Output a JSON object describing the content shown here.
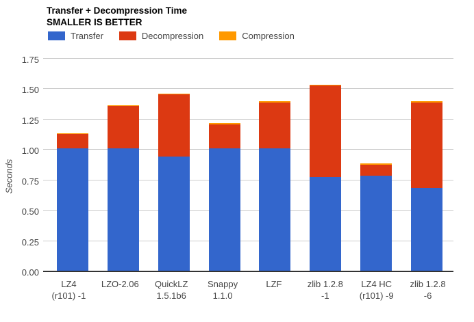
{
  "header": {
    "title": "Transfer + Decompression Time",
    "subtitle": "SMALLER IS BETTER"
  },
  "legend": {
    "items": [
      {
        "label": "Transfer",
        "color": "#3366cc"
      },
      {
        "label": "Decompression",
        "color": "#dc3912"
      },
      {
        "label": "Compression",
        "color": "#ff9900"
      }
    ]
  },
  "axes": {
    "y_title": "Seconds",
    "y_ticks": [
      "0.00",
      "0.25",
      "0.50",
      "0.75",
      "1.00",
      "1.25",
      "1.50",
      "1.75"
    ]
  },
  "chart_data": {
    "type": "bar",
    "stacked": true,
    "title": "Transfer + Decompression Time",
    "subtitle": "SMALLER IS BETTER",
    "ylabel": "Seconds",
    "xlabel": "",
    "ylim": [
      0,
      1.75
    ],
    "ytick_step": 0.25,
    "grid": true,
    "legend_position": "top",
    "categories": [
      "LZ4 (r101) -1",
      "LZO-2.06",
      "QuickLZ 1.5.1b6",
      "Snappy 1.1.0",
      "LZF",
      "zlib 1.2.8 -1",
      "LZ4 HC (r101) -9",
      "zlib 1.2.8 -6"
    ],
    "category_label_lines": [
      [
        "LZ4",
        "(r101) -1"
      ],
      [
        "LZO-2.06"
      ],
      [
        "QuickLZ",
        "1.5.1b6"
      ],
      [
        "Snappy",
        "1.1.0"
      ],
      [
        "LZF"
      ],
      [
        "zlib 1.2.8",
        "-1"
      ],
      [
        "LZ4 HC",
        "(r101) -9"
      ],
      [
        "zlib 1.2.8",
        "-6"
      ]
    ],
    "series": [
      {
        "name": "Transfer",
        "color": "#3366cc",
        "values": [
          1.01,
          1.01,
          0.94,
          1.01,
          1.01,
          0.77,
          0.78,
          0.68
        ]
      },
      {
        "name": "Decompression",
        "color": "#dc3912",
        "values": [
          0.115,
          0.345,
          0.51,
          0.195,
          0.375,
          0.755,
          0.095,
          0.705
        ]
      },
      {
        "name": "Compression",
        "color": "#ff9900",
        "values": [
          0.005,
          0.005,
          0.005,
          0.005,
          0.005,
          0.005,
          0.005,
          0.005
        ]
      }
    ],
    "totals": [
      1.13,
      1.36,
      1.455,
      1.21,
      1.39,
      1.53,
      0.88,
      1.39
    ]
  }
}
